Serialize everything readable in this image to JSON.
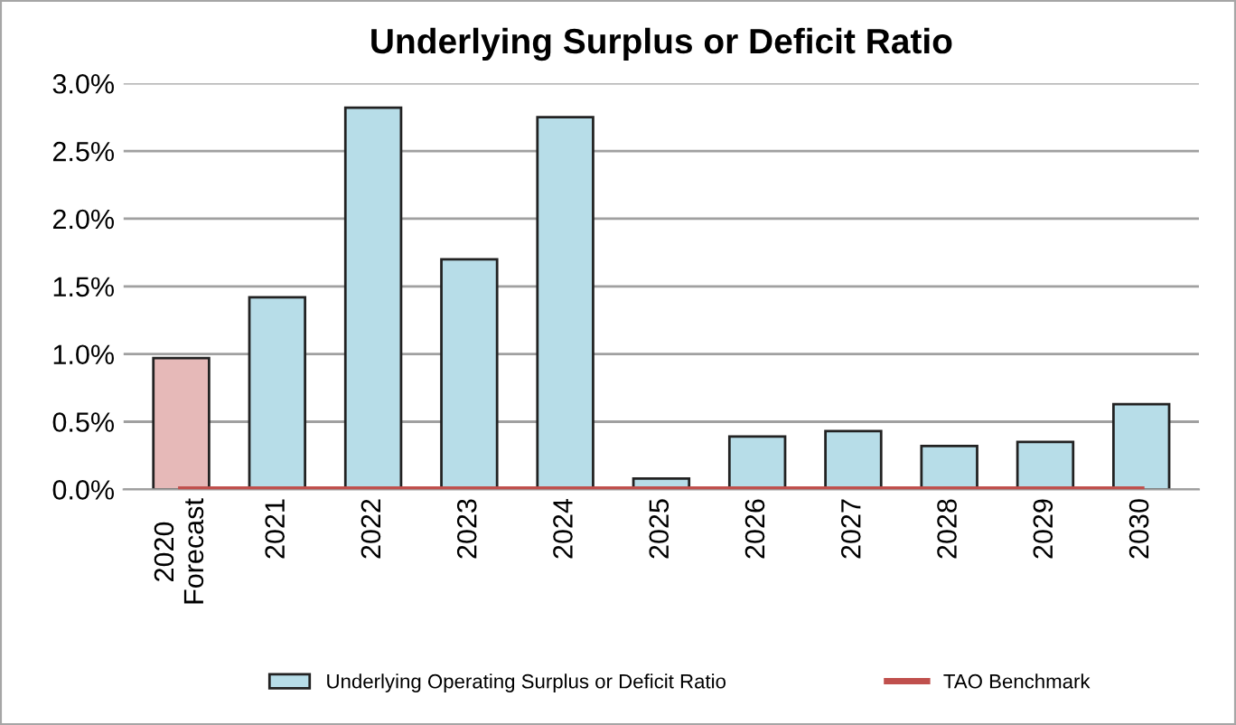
{
  "chart_data": {
    "type": "bar",
    "title": "Underlying Surplus or Deficit Ratio",
    "categories": [
      "2020\nForecast",
      "2021",
      "2022",
      "2023",
      "2024",
      "2025",
      "2026",
      "2027",
      "2028",
      "2029",
      "2030"
    ],
    "series": [
      {
        "name": "Underlying Operating Surplus or Deficit Ratio",
        "color": "#b7dde8",
        "colors": [
          "#e6b9b8",
          "#b7dde8",
          "#b7dde8",
          "#b7dde8",
          "#b7dde8",
          "#b7dde8",
          "#b7dde8",
          "#b7dde8",
          "#b7dde8",
          "#b7dde8",
          "#b7dde8"
        ],
        "values": [
          0.97,
          1.42,
          2.82,
          1.7,
          2.75,
          0.08,
          0.39,
          0.43,
          0.32,
          0.35,
          0.63
        ]
      },
      {
        "name": "TAO Benchmark",
        "type": "line",
        "color": "#c0504d",
        "values": [
          0,
          0,
          0,
          0,
          0,
          0,
          0,
          0,
          0,
          0,
          0
        ]
      }
    ],
    "ylim": [
      0,
      3.0
    ],
    "yticks": [
      {
        "value": 0,
        "label": "0.0%"
      },
      {
        "value": 0.5,
        "label": "0.5%"
      },
      {
        "value": 1.0,
        "label": "1.0%"
      },
      {
        "value": 1.5,
        "label": "1.5%"
      },
      {
        "value": 2.0,
        "label": "2.0%"
      },
      {
        "value": 2.5,
        "label": "2.5%"
      },
      {
        "value": 3.0,
        "label": "3.0%"
      }
    ],
    "grid": "y",
    "legend": "bottom"
  }
}
